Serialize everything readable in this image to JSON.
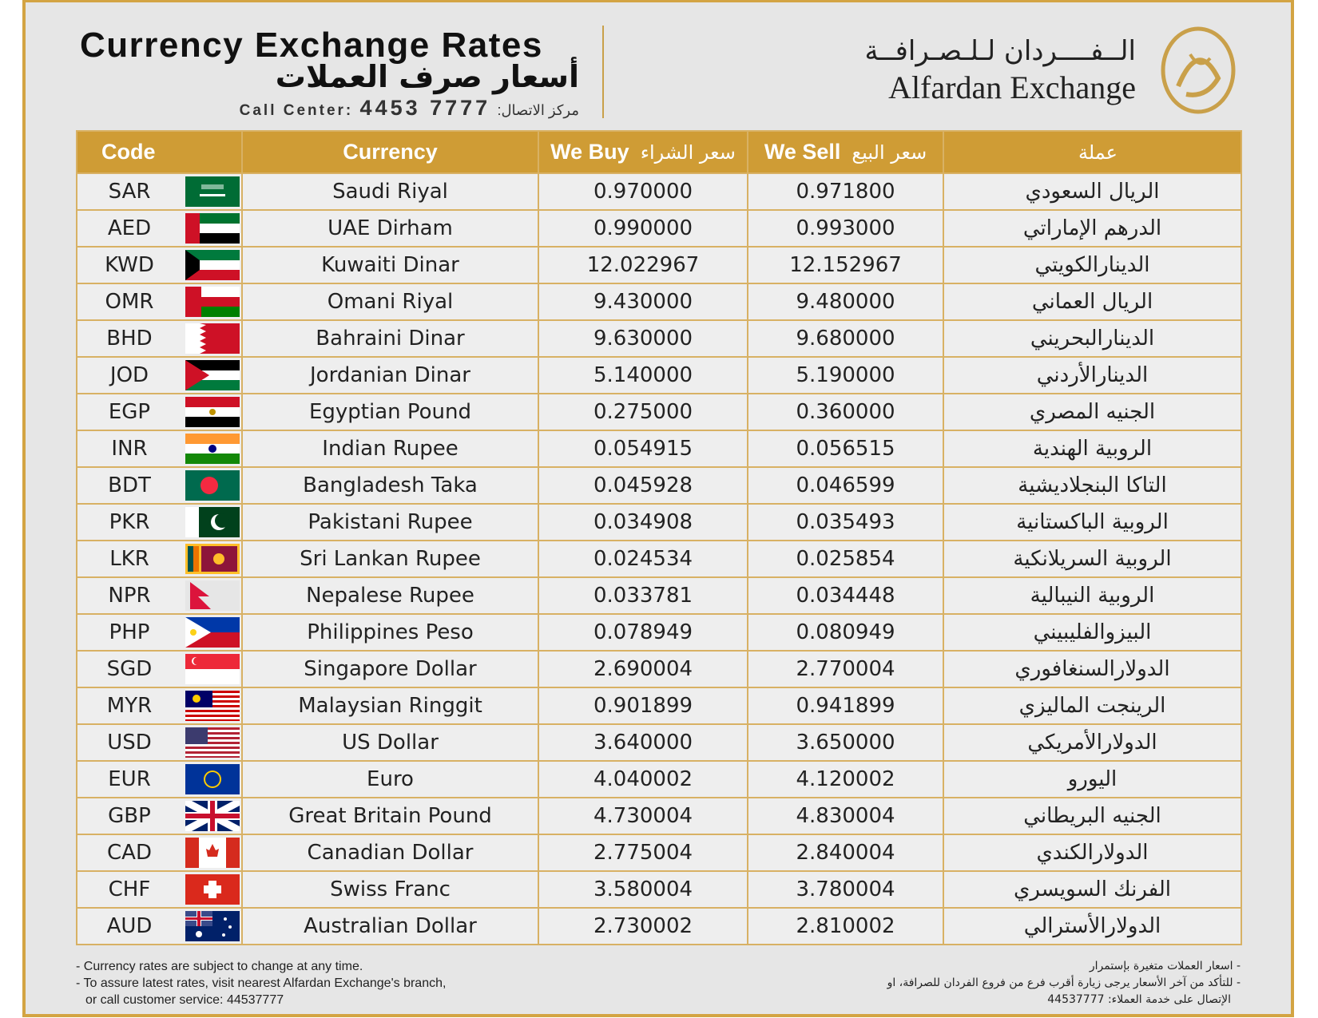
{
  "header": {
    "title": "Currency Exchange Rates",
    "title_ar": "أسعار صرف العملات",
    "call_center_label": "Call Center:",
    "call_center_number": "4453 7777",
    "call_center_label_ar": "مركز الاتصال:"
  },
  "brand": {
    "name_ar": "الــفــــردان لـلـصـرافــة",
    "name_en": "Alfardan Exchange"
  },
  "table": {
    "columns": {
      "code": "Code",
      "currency": "Currency",
      "buy": "We Buy",
      "buy_ar": "سعر الشراء",
      "sell": "We Sell",
      "sell_ar": "سعر البيع",
      "name_ar": "عملة"
    },
    "rows": [
      [
        "SAR",
        "Saudi Riyal",
        "0.970000",
        "0.971800",
        "الريال السعودي"
      ],
      [
        "AED",
        "UAE Dirham",
        "0.990000",
        "0.993000",
        "الدرهم الإماراتي"
      ],
      [
        "KWD",
        "Kuwaiti Dinar",
        "12.022967",
        "12.152967",
        "الدينارالكويتي"
      ],
      [
        "OMR",
        "Omani Riyal",
        "9.430000",
        "9.480000",
        "الريال العماني"
      ],
      [
        "BHD",
        "Bahraini Dinar",
        "9.630000",
        "9.680000",
        "الدينارالبحريني"
      ],
      [
        "JOD",
        "Jordanian Dinar",
        "5.140000",
        "5.190000",
        "الدينارالأردني"
      ],
      [
        "EGP",
        "Egyptian Pound",
        "0.275000",
        "0.360000",
        "الجنيه المصري"
      ],
      [
        "INR",
        "Indian Rupee",
        "0.054915",
        "0.056515",
        "الروبية الهندية"
      ],
      [
        "BDT",
        "Bangladesh Taka",
        "0.045928",
        "0.046599",
        "التاكا البنجلاديشية"
      ],
      [
        "PKR",
        "Pakistani Rupee",
        "0.034908",
        "0.035493",
        "الروبية الباكستانية"
      ],
      [
        "LKR",
        "Sri Lankan Rupee",
        "0.024534",
        "0.025854",
        "الروبية السريلانكية"
      ],
      [
        "NPR",
        "Nepalese Rupee",
        "0.033781",
        "0.034448",
        "الروبية النيبالية"
      ],
      [
        "PHP",
        "Philippines Peso",
        "0.078949",
        "0.080949",
        "البيزوالفليبيني"
      ],
      [
        "SGD",
        "Singapore Dollar",
        "2.690004",
        "2.770004",
        "الدولارالسنغافوري"
      ],
      [
        "MYR",
        "Malaysian Ringgit",
        "0.901899",
        "0.941899",
        "الرينجت الماليزي"
      ],
      [
        "USD",
        "US Dollar",
        "3.640000",
        "3.650000",
        "الدولارالأمريكي"
      ],
      [
        "EUR",
        "Euro",
        "4.040002",
        "4.120002",
        "اليورو"
      ],
      [
        "GBP",
        "Great Britain Pound",
        "4.730004",
        "4.830004",
        "الجنيه البريطاني"
      ],
      [
        "CAD",
        "Canadian Dollar",
        "2.775004",
        "2.840004",
        "الدولارالكندي"
      ],
      [
        "CHF",
        "Swiss Franc",
        "3.580004",
        "3.780004",
        "الفرنك السويسري"
      ],
      [
        "AUD",
        "Australian Dollar",
        "2.730002",
        "2.810002",
        "الدولارالأسترالي"
      ]
    ]
  },
  "footer": {
    "notes_en": [
      "- Currency rates are subject to change at any time.",
      "- To assure latest rates, visit nearest Alfardan Exchange's branch,",
      "or call customer service: 44537777"
    ],
    "notes_ar": [
      "- اسعار العملات متغيرة بإستمرار",
      "- للتأكد من آخر الأسعار يرجى زيارة أقرب فرع من فروع الفردان للصرافة، او",
      "الإتصال على خدمة العملاء: 44537777"
    ]
  }
}
